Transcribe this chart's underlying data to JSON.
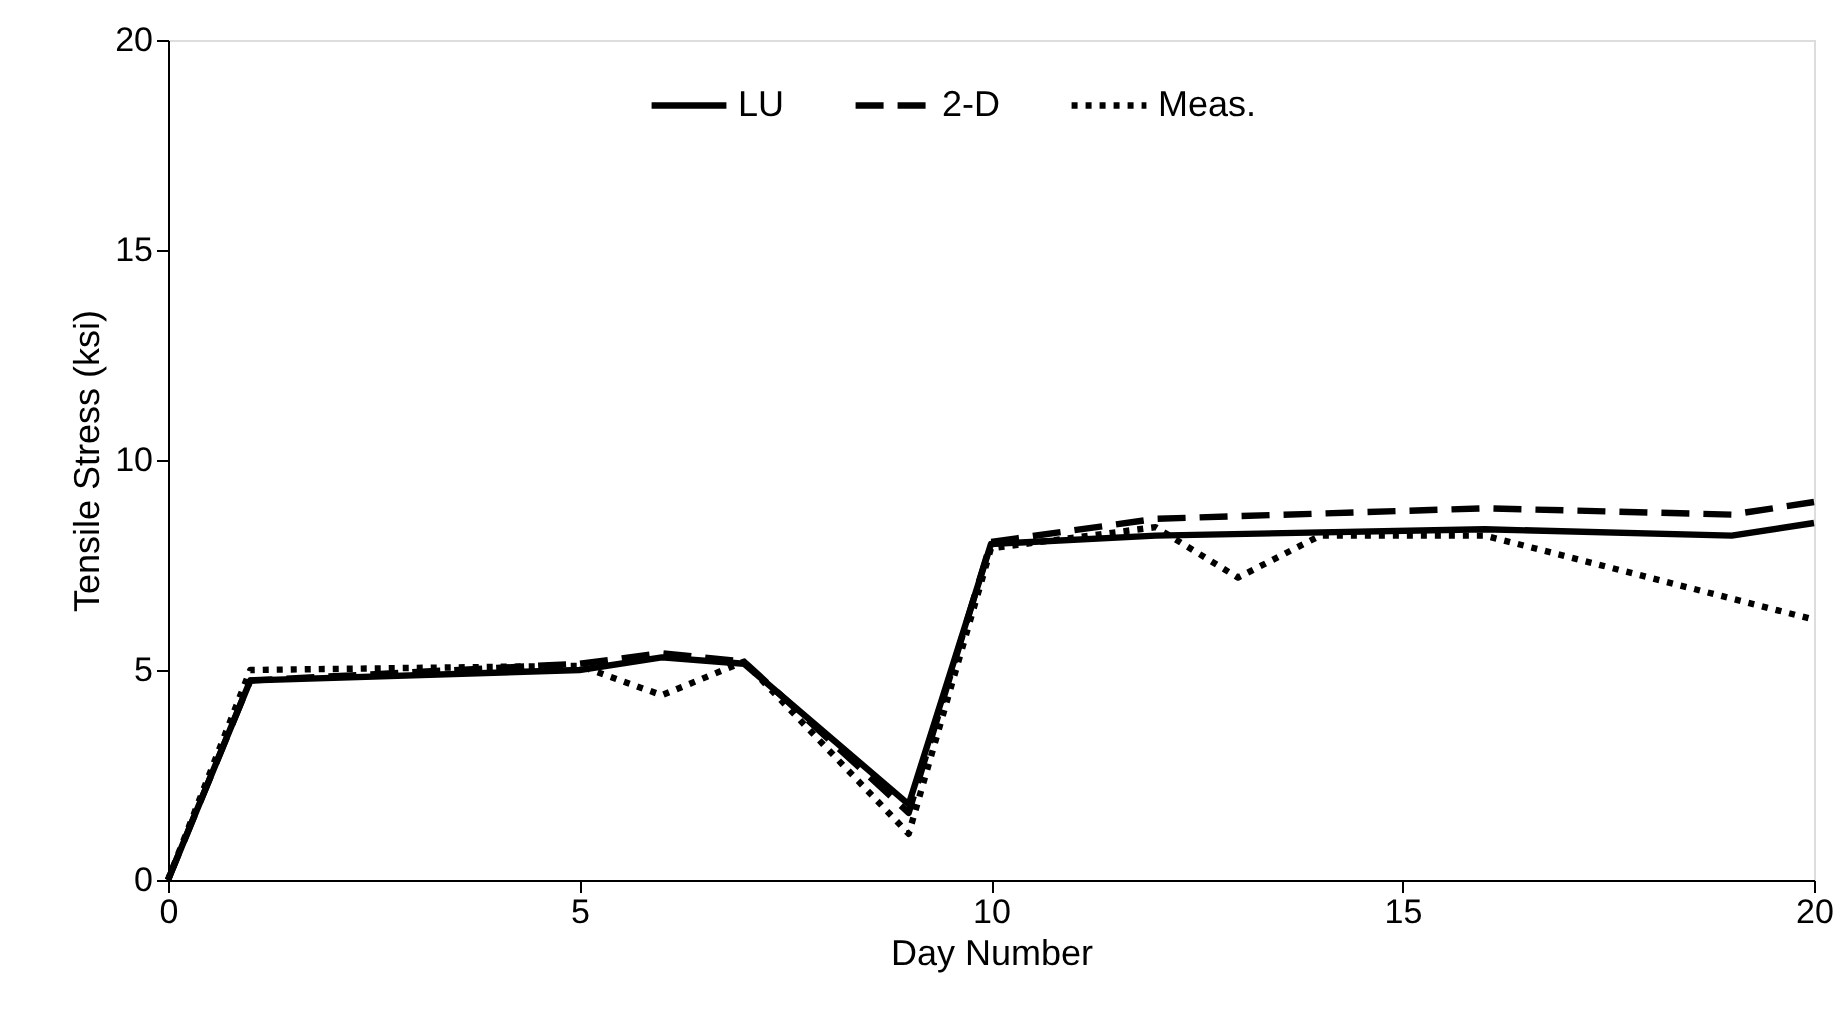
{
  "chart_data": {
    "type": "line",
    "xlabel": "Day Number",
    "ylabel": "Tensile Stress (ksi)",
    "xlim": [
      0,
      20
    ],
    "xticks": [
      0,
      5,
      10,
      15,
      20
    ],
    "ylim": [
      0,
      20
    ],
    "yticks": [
      0,
      5,
      10,
      15,
      20
    ],
    "grid": false,
    "legend": "top",
    "series": [
      {
        "name": "LU",
        "color": "#000000",
        "line_style": "solid",
        "x": [
          0,
          1,
          5,
          6,
          7,
          9,
          10,
          12,
          16,
          19,
          20
        ],
        "values": [
          0,
          4.75,
          5.0,
          5.3,
          5.15,
          1.8,
          8.0,
          8.2,
          8.35,
          8.2,
          8.5
        ]
      },
      {
        "name": "2-D",
        "color": "#000000",
        "line_style": "dashed",
        "x": [
          0,
          1,
          5,
          6,
          7,
          9,
          10,
          12,
          16,
          19,
          20
        ],
        "values": [
          0,
          4.75,
          5.15,
          5.4,
          5.2,
          1.6,
          8.05,
          8.6,
          8.85,
          8.7,
          9.0
        ]
      },
      {
        "name": "Meas.",
        "color": "#000000",
        "line_style": "dotted",
        "x": [
          0,
          1,
          5,
          6,
          7,
          9,
          10,
          12,
          13,
          14,
          16,
          20
        ],
        "values": [
          0,
          5.0,
          5.1,
          4.4,
          5.2,
          1.1,
          7.9,
          8.4,
          7.2,
          8.2,
          8.2,
          6.2
        ]
      }
    ]
  }
}
